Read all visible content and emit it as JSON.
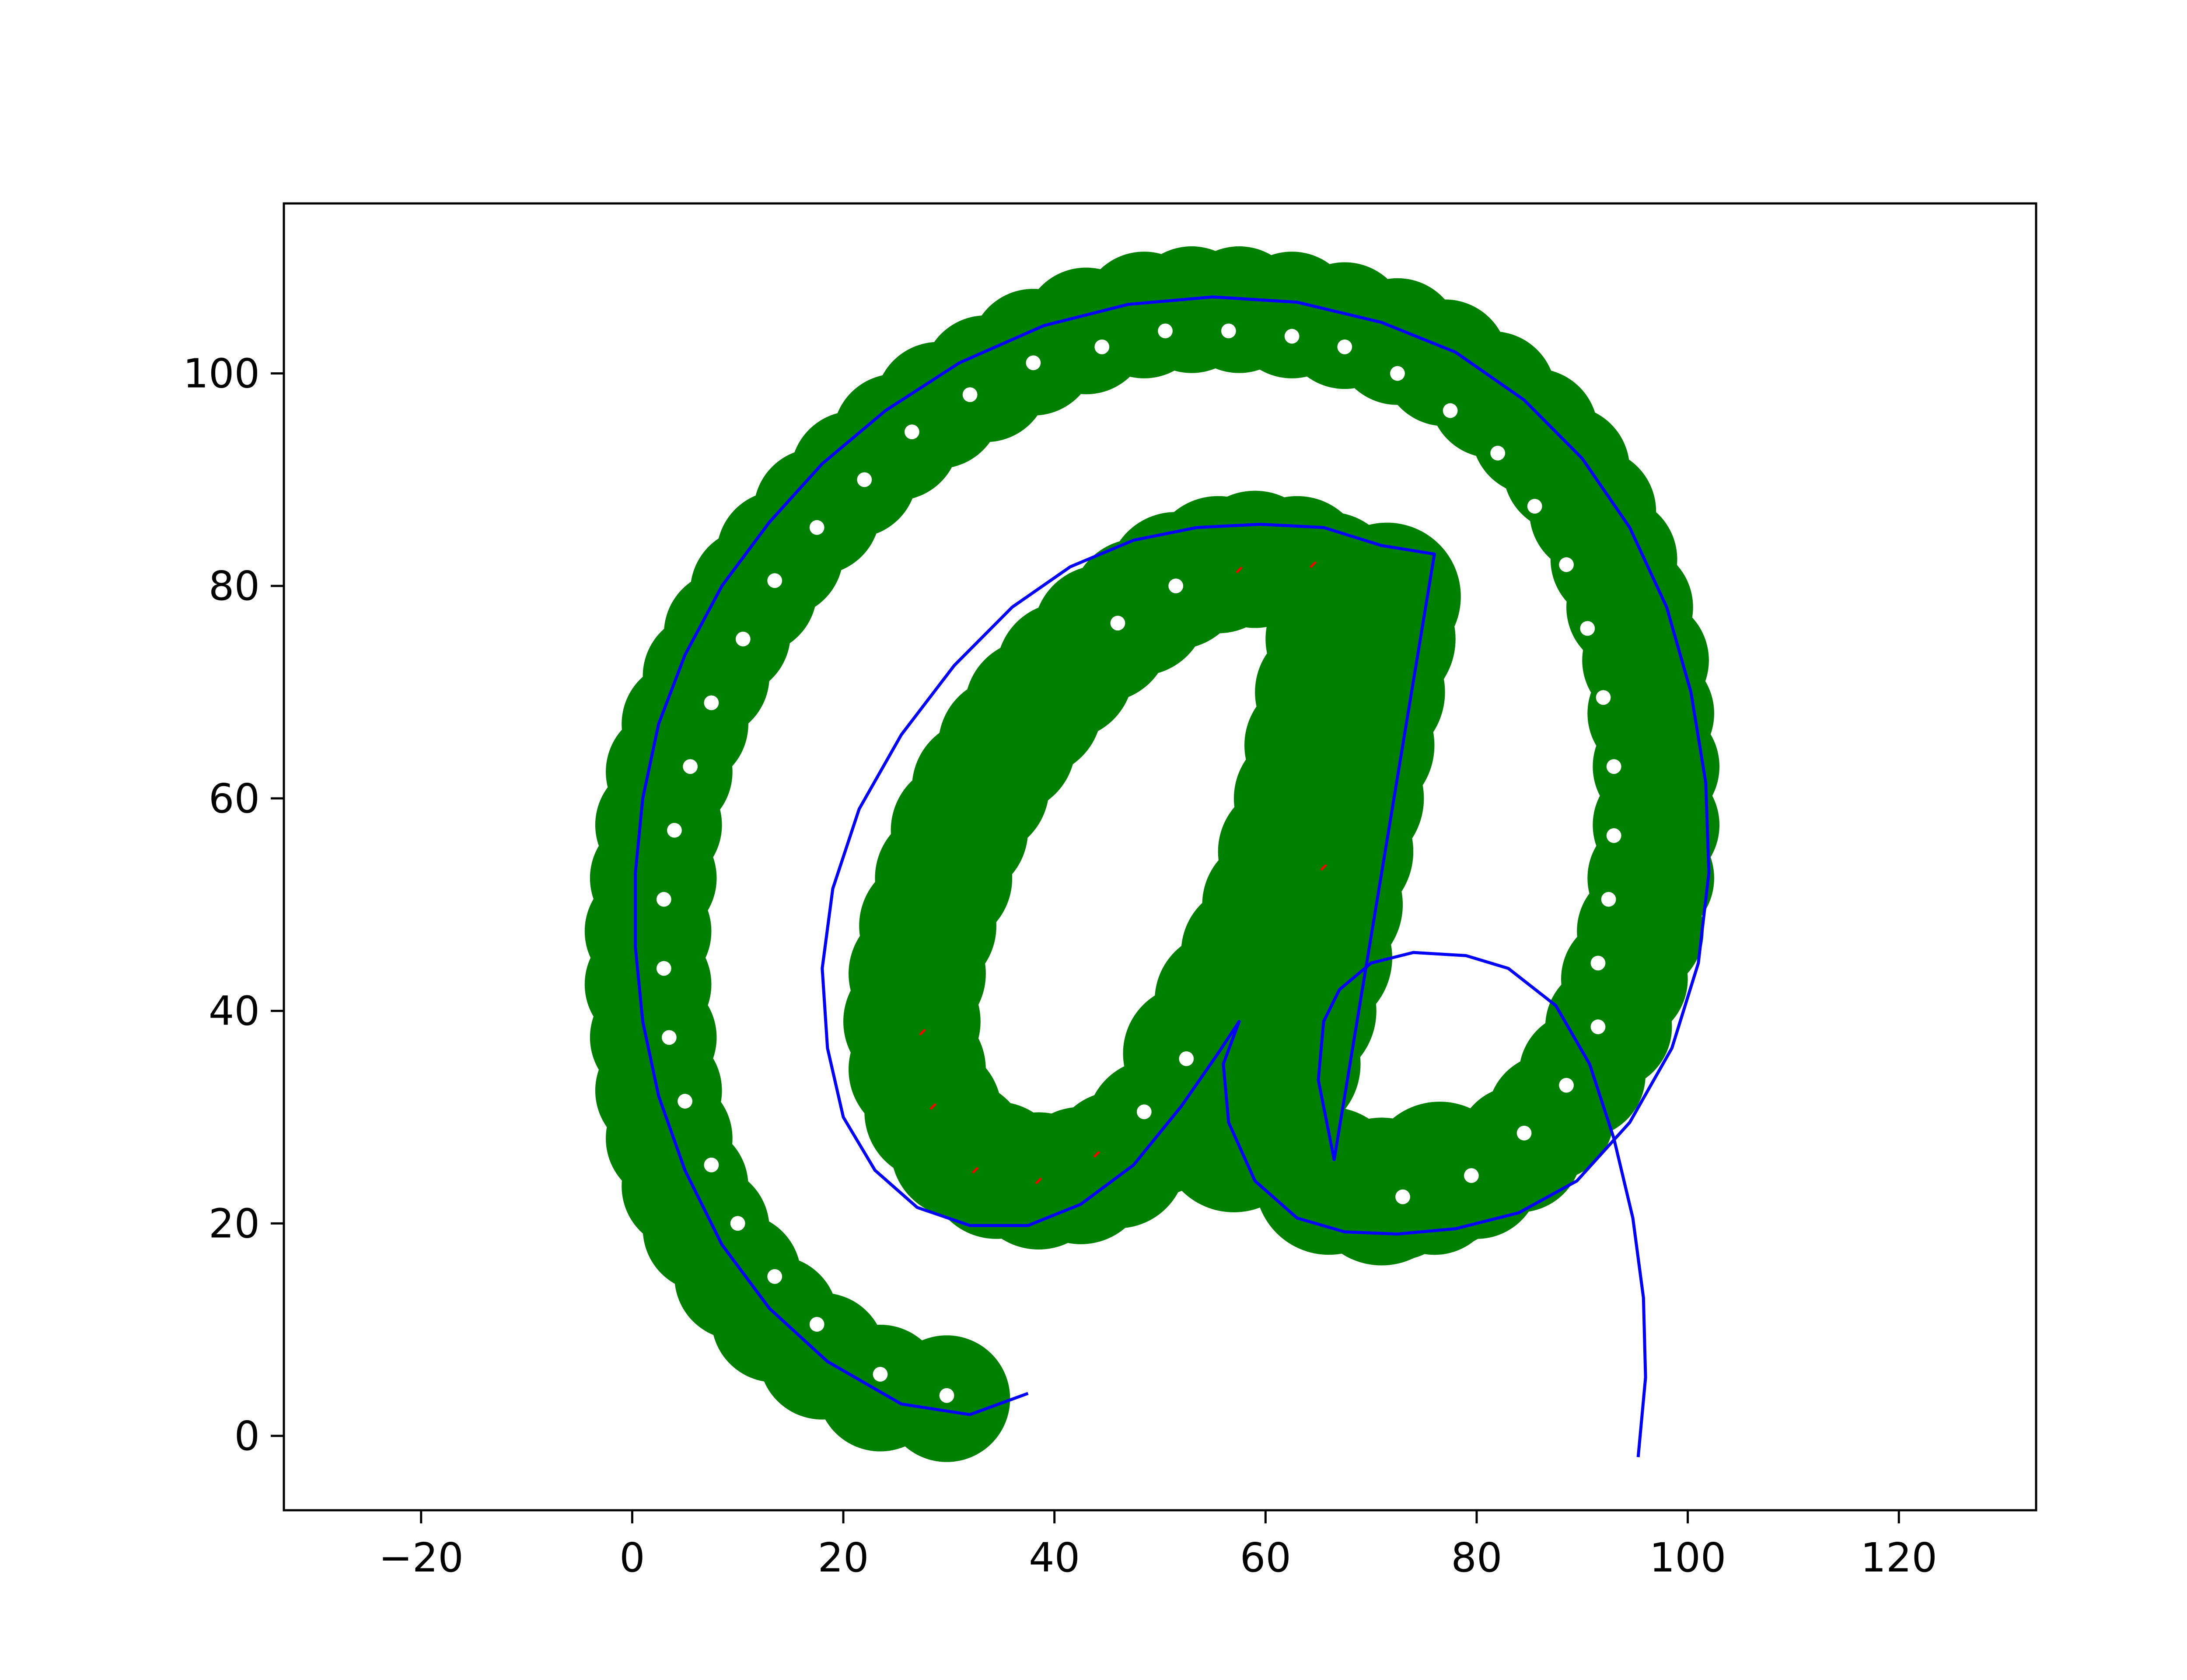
{
  "chart_data": {
    "type": "scatter",
    "title": "",
    "xlabel": "",
    "ylabel": "",
    "xlim": [
      -33,
      133
    ],
    "ylim": [
      -7,
      116
    ],
    "xticks": [
      -20,
      0,
      20,
      40,
      60,
      80,
      100,
      120
    ],
    "yticks": [
      0,
      20,
      40,
      60,
      80,
      100
    ],
    "xtick_labels": [
      "−20",
      "0",
      "20",
      "40",
      "60",
      "80",
      "100",
      "120"
    ],
    "ytick_labels": [
      "0",
      "20",
      "40",
      "60",
      "80",
      "100"
    ],
    "grid": false,
    "legend": "none",
    "colors": {
      "fill": "#008000",
      "outline": "#0000ff",
      "interior_dots": "#ffffff",
      "accent_marks": "#ff0000"
    },
    "series": [
      {
        "kind": "disks",
        "radius": 6,
        "points": [
          [
            29.8,
            3.5
          ],
          [
            23.5,
            4.5
          ],
          [
            18,
            7.5
          ],
          [
            13.5,
            11
          ],
          [
            10,
            15
          ],
          [
            7,
            19.5
          ],
          [
            5,
            23.5
          ],
          [
            3.5,
            28
          ],
          [
            2.5,
            32.5
          ],
          [
            2,
            37.5
          ],
          [
            1.5,
            42.5
          ],
          [
            1.5,
            47.5
          ],
          [
            2,
            52.5
          ],
          [
            2.5,
            57.5
          ],
          [
            3.5,
            62.5
          ],
          [
            5,
            67
          ],
          [
            7,
            71.5
          ],
          [
            9,
            75.5
          ],
          [
            11.5,
            79.5
          ],
          [
            14,
            83
          ],
          [
            17.5,
            87
          ],
          [
            21,
            90.5
          ],
          [
            25,
            94
          ],
          [
            29,
            97
          ],
          [
            33.5,
            99.5
          ],
          [
            38,
            102
          ],
          [
            43,
            104
          ],
          [
            48.5,
            105.5
          ],
          [
            53,
            106
          ],
          [
            57.5,
            106
          ],
          [
            62.5,
            105.5
          ],
          [
            67.5,
            104.5
          ],
          [
            72.5,
            103
          ],
          [
            77,
            101
          ],
          [
            81.5,
            98
          ],
          [
            85.5,
            94.5
          ],
          [
            88.5,
            91
          ],
          [
            91,
            87
          ],
          [
            93,
            82.5
          ],
          [
            94.5,
            78
          ],
          [
            96,
            73
          ],
          [
            96.5,
            68
          ],
          [
            97,
            63
          ],
          [
            97,
            57.5
          ],
          [
            96.5,
            52.5
          ],
          [
            95.5,
            47.5
          ],
          [
            94,
            43
          ],
          [
            92.5,
            38.5
          ],
          [
            90,
            34
          ],
          [
            87,
            30
          ],
          [
            84,
            27
          ],
          [
            80,
            24.5
          ],
          [
            76,
            23
          ],
          [
            72.5,
            22.5
          ]
        ]
      },
      {
        "kind": "disks",
        "radius": 6.5,
        "points": [
          [
            53,
            36
          ],
          [
            56,
            41
          ],
          [
            58.5,
            45.5
          ],
          [
            60.5,
            50
          ],
          [
            62,
            55
          ],
          [
            63.5,
            60
          ],
          [
            64.5,
            65
          ],
          [
            65.5,
            70
          ],
          [
            66.5,
            75
          ],
          [
            67.5,
            79
          ],
          [
            66,
            80.5
          ],
          [
            63,
            82
          ],
          [
            59,
            82.5
          ],
          [
            55.5,
            82
          ],
          [
            51.5,
            80.5
          ],
          [
            48,
            78
          ],
          [
            44.5,
            75.5
          ],
          [
            41,
            72
          ],
          [
            38,
            68.5
          ],
          [
            35.5,
            65
          ],
          [
            33,
            61
          ],
          [
            31,
            57
          ],
          [
            29.5,
            52.5
          ],
          [
            28,
            48
          ],
          [
            27,
            43.5
          ],
          [
            26.5,
            39
          ],
          [
            27,
            34.5
          ],
          [
            28.5,
            30.5
          ],
          [
            31,
            27
          ],
          [
            34.5,
            25
          ],
          [
            38.5,
            24
          ],
          [
            42.5,
            24.5
          ],
          [
            46,
            26
          ],
          [
            49.5,
            29
          ]
        ]
      },
      {
        "kind": "disks",
        "radius": 7,
        "points": [
          [
            57,
            28
          ],
          [
            59.5,
            31.5
          ],
          [
            62,
            35
          ],
          [
            63.5,
            40
          ],
          [
            65,
            45
          ],
          [
            66,
            50
          ],
          [
            67,
            55
          ],
          [
            68,
            60
          ],
          [
            69,
            65
          ],
          [
            70,
            70
          ],
          [
            71,
            75
          ],
          [
            71.5,
            79
          ],
          [
            66,
            24
          ],
          [
            71,
            23
          ],
          [
            76.5,
            24.5
          ]
        ]
      },
      {
        "kind": "dots",
        "radius": 0.7,
        "points": [
          [
            29.8,
            3.8
          ],
          [
            23.5,
            5.8
          ],
          [
            52.5,
            35.5
          ],
          [
            48.5,
            30.5
          ],
          [
            79.5,
            24.5
          ],
          [
            84.5,
            28.5
          ],
          [
            88.5,
            33
          ],
          [
            91.5,
            38.5
          ],
          [
            51.5,
            80
          ],
          [
            46,
            76.5
          ],
          [
            17.5,
            10.5
          ],
          [
            13.5,
            15
          ],
          [
            10,
            20
          ],
          [
            7.5,
            25.5
          ],
          [
            5,
            31.5
          ],
          [
            3.5,
            37.5
          ],
          [
            3,
            44
          ],
          [
            3,
            50.5
          ],
          [
            4,
            57
          ],
          [
            5.5,
            63
          ],
          [
            7.5,
            69
          ],
          [
            10.5,
            75
          ],
          [
            13.5,
            80.5
          ],
          [
            17.5,
            85.5
          ],
          [
            22,
            90
          ],
          [
            26.5,
            94.5
          ],
          [
            32,
            98
          ],
          [
            38,
            101
          ],
          [
            44.5,
            102.5
          ],
          [
            50.5,
            104
          ],
          [
            56.5,
            104
          ],
          [
            62.5,
            103.5
          ],
          [
            67.5,
            102.5
          ],
          [
            72.5,
            100
          ],
          [
            77.5,
            96.5
          ],
          [
            82,
            92.5
          ],
          [
            85.5,
            87.5
          ],
          [
            88.5,
            82
          ],
          [
            90.5,
            76
          ],
          [
            92,
            69.5
          ],
          [
            93,
            63
          ],
          [
            93,
            56.5
          ],
          [
            92.5,
            50.5
          ],
          [
            91.5,
            44.5
          ],
          [
            73,
            22.5
          ]
        ]
      },
      {
        "kind": "accents",
        "points": [
          [
            28.5,
            31
          ],
          [
            32.5,
            25
          ],
          [
            44,
            26.5
          ],
          [
            38.5,
            24
          ],
          [
            57.5,
            81.5
          ],
          [
            64.5,
            82
          ],
          [
            65.5,
            53.5
          ],
          [
            27.5,
            38
          ]
        ]
      }
    ],
    "outline": [
      [
        37.5,
        4
      ],
      [
        32,
        2
      ],
      [
        25.5,
        3
      ],
      [
        18.5,
        7
      ],
      [
        13,
        12
      ],
      [
        8.5,
        18
      ],
      [
        5,
        25
      ],
      [
        2.5,
        32
      ],
      [
        1,
        39
      ],
      [
        0.3,
        46
      ],
      [
        0.3,
        53
      ],
      [
        1,
        60
      ],
      [
        2.5,
        67
      ],
      [
        5,
        73.5
      ],
      [
        8.5,
        80
      ],
      [
        13,
        86
      ],
      [
        18,
        91.5
      ],
      [
        24,
        96.5
      ],
      [
        31,
        101
      ],
      [
        39,
        104.5
      ],
      [
        47,
        106.5
      ],
      [
        55,
        107.2
      ],
      [
        63,
        106.7
      ],
      [
        71,
        104.8
      ],
      [
        78,
        102
      ],
      [
        84.5,
        97.5
      ],
      [
        90,
        92
      ],
      [
        94.5,
        85.5
      ],
      [
        98,
        78
      ],
      [
        100.3,
        70
      ],
      [
        101.7,
        61.5
      ],
      [
        102,
        53
      ],
      [
        101,
        44.5
      ],
      [
        98.5,
        36.5
      ],
      [
        94.5,
        29.5
      ],
      [
        89.5,
        24
      ],
      [
        84,
        21
      ],
      [
        78,
        19.5
      ],
      [
        72.5,
        19
      ],
      [
        67.5,
        19.2
      ],
      [
        63,
        20.5
      ],
      [
        59,
        24
      ],
      [
        56.5,
        29.5
      ],
      [
        56,
        35
      ],
      [
        57.5,
        39
      ],
      [
        55.5,
        36
      ],
      [
        52,
        31
      ],
      [
        47.5,
        25.5
      ],
      [
        42.5,
        21.8
      ],
      [
        37.5,
        19.8
      ],
      [
        32,
        19.8
      ],
      [
        27,
        21.5
      ],
      [
        23,
        25
      ],
      [
        20,
        30
      ],
      [
        18.5,
        36.5
      ],
      [
        18,
        44
      ],
      [
        19,
        51.5
      ],
      [
        21.5,
        59
      ],
      [
        25.5,
        66
      ],
      [
        30.5,
        72.5
      ],
      [
        36,
        78
      ],
      [
        41.5,
        81.8
      ],
      [
        47.5,
        84.3
      ],
      [
        53.5,
        85.5
      ],
      [
        59.5,
        85.8
      ],
      [
        65.5,
        85.5
      ],
      [
        71,
        83.8
      ],
      [
        76,
        83
      ],
      [
        66.5,
        26
      ],
      [
        65,
        33.5
      ],
      [
        65.5,
        39
      ],
      [
        67,
        42
      ],
      [
        70,
        44.5
      ],
      [
        74,
        45.5
      ],
      [
        79,
        45.2
      ],
      [
        83,
        44
      ],
      [
        87.5,
        40.5
      ],
      [
        90.7,
        35
      ],
      [
        93,
        28
      ],
      [
        94.8,
        20.5
      ],
      [
        95.8,
        13
      ],
      [
        96,
        5.5
      ],
      [
        95.3,
        -2
      ]
    ]
  }
}
